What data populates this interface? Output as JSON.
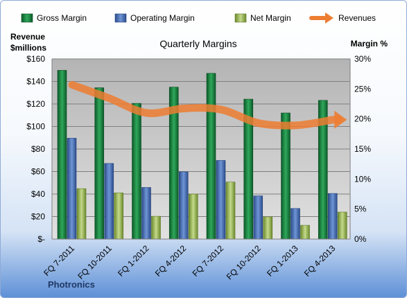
{
  "chart_data": {
    "type": "bar",
    "title": "Quarterly Margins",
    "categories": [
      "FQ 7-2011",
      "FQ 10-2011",
      "FQ 1-2012",
      "FQ 4-2012",
      "FQ 7-2012",
      "FQ 10-2012",
      "FQ 1-2013",
      "FQ 4-2013"
    ],
    "y_left": {
      "label_line1": "Revenue",
      "label_line2": "$millions",
      "range": [
        0,
        160
      ],
      "ticks": [
        0,
        20,
        40,
        60,
        80,
        100,
        120,
        140,
        160
      ],
      "tick_labels": [
        "$-",
        "$20",
        "$40",
        "$60",
        "$80",
        "$100",
        "$120",
        "$140",
        "$160"
      ]
    },
    "y_right": {
      "label": "Margin %",
      "range": [
        0,
        30
      ],
      "ticks": [
        0,
        5,
        10,
        15,
        20,
        25,
        30
      ],
      "tick_labels": [
        "0%",
        "5%",
        "10%",
        "15%",
        "20%",
        "25%",
        "30%"
      ]
    },
    "series": [
      {
        "name": "Gross Margin",
        "kind": "bar",
        "axis": "right",
        "color": "#1e8a45",
        "values": [
          28.1,
          25.2,
          22.6,
          25.3,
          27.6,
          23.3,
          21.0,
          23.1
        ]
      },
      {
        "name": "Operating Margin",
        "kind": "bar",
        "axis": "right",
        "color": "#4a72b8",
        "values": [
          16.8,
          12.6,
          8.6,
          11.2,
          13.1,
          7.2,
          5.1,
          7.6
        ]
      },
      {
        "name": "Net Margin",
        "kind": "bar",
        "axis": "right",
        "color": "#9bbb59",
        "values": [
          8.4,
          7.7,
          3.8,
          7.5,
          9.5,
          3.7,
          2.3,
          4.5
        ]
      },
      {
        "name": "Revenues",
        "kind": "line",
        "axis": "left",
        "color": "#ed7d31",
        "values": [
          137,
          125,
          112,
          116,
          115,
          103,
          101,
          106
        ]
      }
    ],
    "legend_position": "top",
    "grid": true,
    "footer": "Photronics"
  }
}
